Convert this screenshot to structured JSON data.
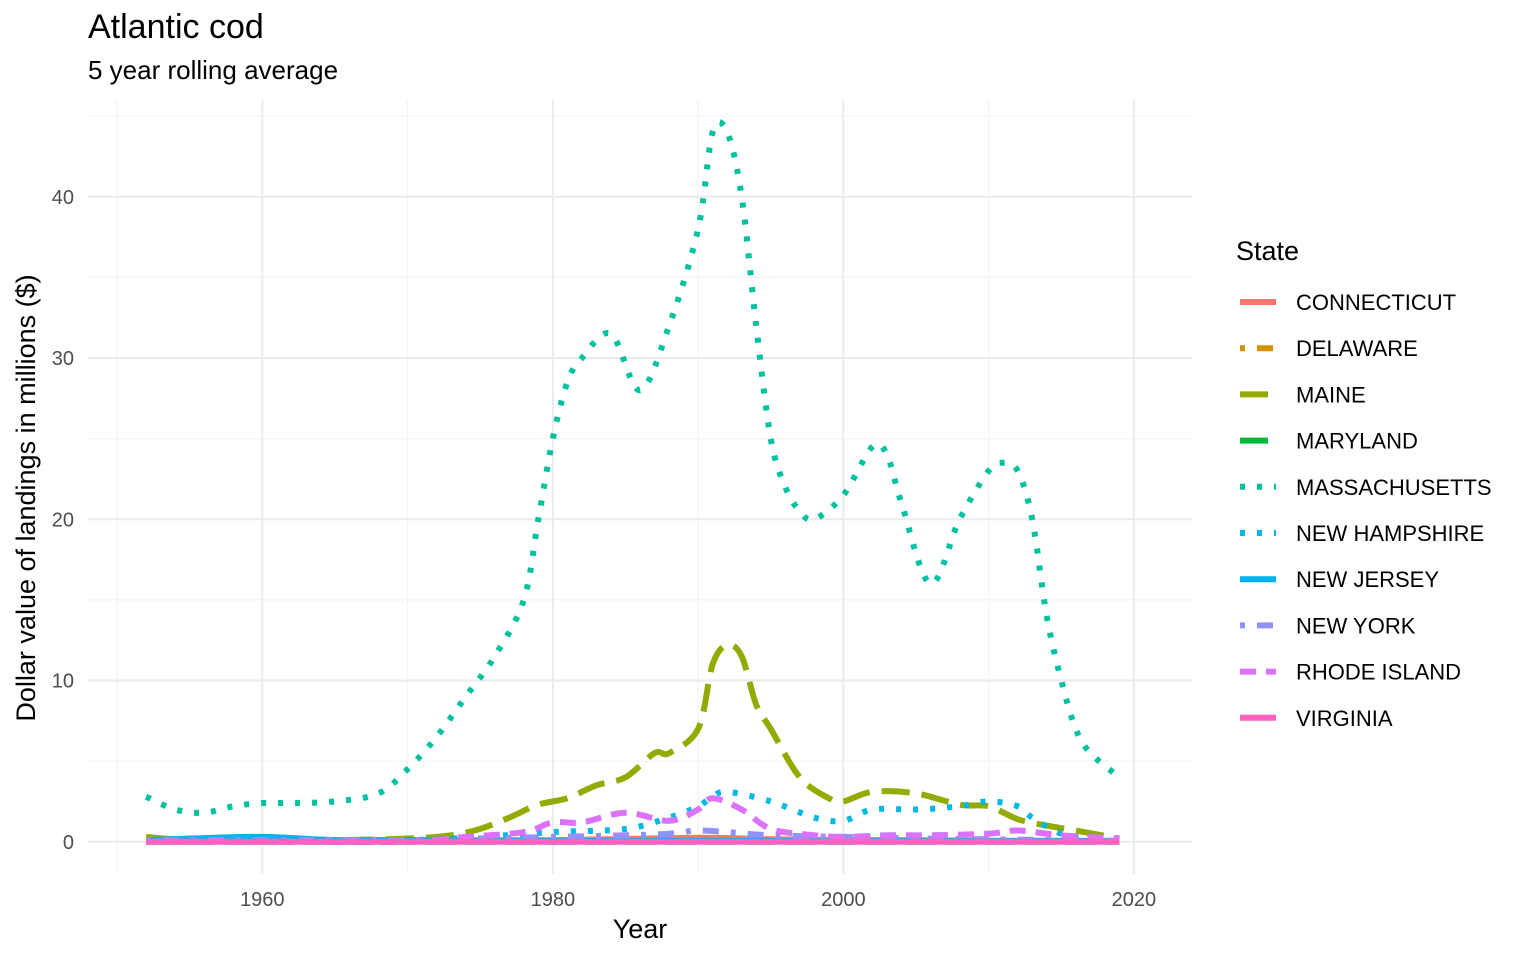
{
  "chart_data": {
    "type": "line",
    "title": "Atlantic cod",
    "subtitle": "5 year rolling average",
    "xlabel": "Year",
    "ylabel": "Dollar value of landings in millions ($)",
    "xlim": [
      1948,
      2024
    ],
    "ylim": [
      -2,
      46
    ],
    "x_ticks": [
      1960,
      1980,
      2000,
      2020
    ],
    "x_tick_labels": [
      "1960",
      "1980",
      "2000",
      "2020"
    ],
    "y_ticks": [
      0,
      10,
      20,
      30,
      40
    ],
    "y_tick_labels": [
      "0",
      "10",
      "20",
      "30",
      "40"
    ],
    "grid": true,
    "legend": {
      "title": "State",
      "position": "right"
    },
    "series": [
      {
        "name": "CONNECTICUT",
        "color": "#F8766D",
        "dash": "solid",
        "x": [
          1952,
          1960,
          1970,
          1980,
          1990,
          1995,
          2000,
          2005,
          2010,
          2015,
          2019
        ],
        "y": [
          0.05,
          0.08,
          0.1,
          0.1,
          0.25,
          0.15,
          0.1,
          0.1,
          0.05,
          0.05,
          0.02
        ]
      },
      {
        "name": "DELAWARE",
        "color": "#D39200",
        "dash": "dashdot",
        "x": [
          1952,
          1960,
          1970,
          1980,
          1990,
          2000,
          2010,
          2019
        ],
        "y": [
          0.05,
          0.05,
          0.05,
          0.05,
          0.05,
          0.05,
          0.05,
          0.05
        ]
      },
      {
        "name": "MAINE",
        "color": "#93AA00",
        "dash": "longdash",
        "x": [
          1952,
          1955,
          1960,
          1965,
          1970,
          1973,
          1975,
          1977,
          1979,
          1981,
          1983,
          1985,
          1987,
          1988,
          1990,
          1991,
          1992,
          1993,
          1994,
          1995,
          1997,
          1999,
          2000,
          2002,
          2005,
          2008,
          2010,
          2012,
          2014,
          2016,
          2019
        ],
        "y": [
          0.3,
          0.1,
          0.1,
          0.1,
          0.2,
          0.4,
          0.8,
          1.5,
          2.3,
          2.7,
          3.5,
          4.0,
          5.5,
          5.5,
          7.0,
          11.0,
          12.2,
          11.5,
          8.5,
          7.0,
          4.0,
          2.7,
          2.5,
          3.1,
          3.0,
          2.3,
          2.2,
          1.4,
          1.0,
          0.7,
          0.2
        ]
      },
      {
        "name": "MARYLAND",
        "color": "#00BA38",
        "dash": "longdash",
        "x": [
          1952,
          1960,
          1970,
          1980,
          1990,
          2000,
          2010,
          2019
        ],
        "y": [
          0.0,
          0.0,
          0.0,
          0.0,
          0.0,
          0.0,
          0.0,
          0.0
        ]
      },
      {
        "name": "MASSACHUSETTS",
        "color": "#00C19F",
        "dash": "dotted",
        "x": [
          1952,
          1954,
          1956,
          1958,
          1960,
          1962,
          1965,
          1968,
          1970,
          1972,
          1974,
          1976,
          1978,
          1979,
          1980,
          1981,
          1982,
          1984,
          1986,
          1988,
          1990,
          1991,
          1992,
          1993,
          1994,
          1995,
          1996,
          1997,
          1998,
          2000,
          2002,
          2003,
          2004,
          2006,
          2008,
          2010,
          2011,
          2012,
          2013,
          2014,
          2015,
          2016,
          2017,
          2019
        ],
        "y": [
          2.8,
          2.0,
          1.8,
          2.2,
          2.4,
          2.4,
          2.5,
          3.0,
          4.5,
          6.5,
          9.0,
          11.5,
          15.0,
          20.0,
          25.0,
          28.5,
          30.0,
          31.5,
          28.0,
          32.0,
          38.0,
          44.0,
          44.0,
          40.0,
          32.0,
          25.0,
          22.0,
          20.5,
          20.0,
          21.5,
          24.5,
          24.0,
          21.0,
          16.0,
          20.0,
          23.0,
          23.5,
          23.0,
          20.0,
          14.0,
          10.0,
          7.0,
          5.5,
          4.0
        ]
      },
      {
        "name": "NEW HAMPSHIRE",
        "color": "#00B9E3",
        "dash": "dotted",
        "x": [
          1952,
          1960,
          1970,
          1975,
          1980,
          1985,
          1988,
          1990,
          1991,
          1992,
          1995,
          1998,
          2000,
          2002,
          2005,
          2008,
          2010,
          2012,
          2013,
          2015,
          2017,
          2019
        ],
        "y": [
          0.1,
          0.1,
          0.1,
          0.3,
          0.6,
          0.8,
          1.5,
          2.2,
          2.8,
          3.1,
          2.5,
          1.5,
          1.3,
          2.0,
          2.0,
          2.2,
          2.5,
          2.2,
          1.5,
          0.5,
          0.2,
          0.0
        ]
      },
      {
        "name": "NEW JERSEY",
        "color": "#00B3F0",
        "dash": "solid",
        "x": [
          1952,
          1955,
          1960,
          1965,
          1970,
          1980,
          1990,
          2000,
          2010,
          2019
        ],
        "y": [
          0.1,
          0.2,
          0.3,
          0.1,
          0.1,
          0.05,
          0.05,
          0.05,
          0.05,
          0.05
        ]
      },
      {
        "name": "NEW YORK",
        "color": "#8F92FF",
        "dash": "dashdot",
        "x": [
          1952,
          1960,
          1970,
          1975,
          1980,
          1985,
          1988,
          1990,
          1992,
          1995,
          2000,
          2005,
          2010,
          2015,
          2019
        ],
        "y": [
          0.1,
          0.1,
          0.1,
          0.2,
          0.3,
          0.4,
          0.5,
          0.7,
          0.6,
          0.4,
          0.3,
          0.2,
          0.15,
          0.1,
          0.05
        ]
      },
      {
        "name": "RHODE ISLAND",
        "color": "#DB72FB",
        "dash": "dashed",
        "x": [
          1952,
          1960,
          1970,
          1974,
          1978,
          1980,
          1982,
          1985,
          1988,
          1990,
          1991,
          1993,
          1995,
          1998,
          2000,
          2003,
          2006,
          2010,
          2012,
          2015,
          2019
        ],
        "y": [
          0.0,
          0.0,
          0.0,
          0.3,
          0.6,
          1.2,
          1.2,
          1.8,
          1.3,
          2.0,
          2.7,
          2.0,
          0.8,
          0.4,
          0.3,
          0.4,
          0.4,
          0.5,
          0.7,
          0.4,
          0.2
        ]
      },
      {
        "name": "VIRGINIA",
        "color": "#FF61C3",
        "dash": "solid",
        "x": [
          1952,
          1960,
          1970,
          1980,
          1990,
          2000,
          2010,
          2019
        ],
        "y": [
          0.0,
          0.0,
          0.0,
          0.0,
          0.0,
          0.0,
          0.0,
          0.0
        ]
      }
    ]
  }
}
